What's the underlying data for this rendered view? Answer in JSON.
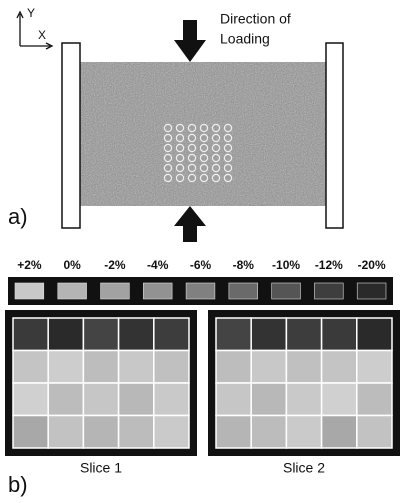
{
  "axes": {
    "y": "Y",
    "x": "X"
  },
  "annotation": {
    "line1": "Direction of",
    "line2": "Loading"
  },
  "panel_a": {
    "label": "a)"
  },
  "legend": {
    "labels": [
      "+2%",
      "0%",
      "-2%",
      "-4%",
      "-6%",
      "-8%",
      "-10%",
      "-12%",
      "-20%"
    ]
  },
  "panel_b": {
    "label": "b)",
    "slices": [
      "Slice 1",
      "Slice 2"
    ]
  }
}
